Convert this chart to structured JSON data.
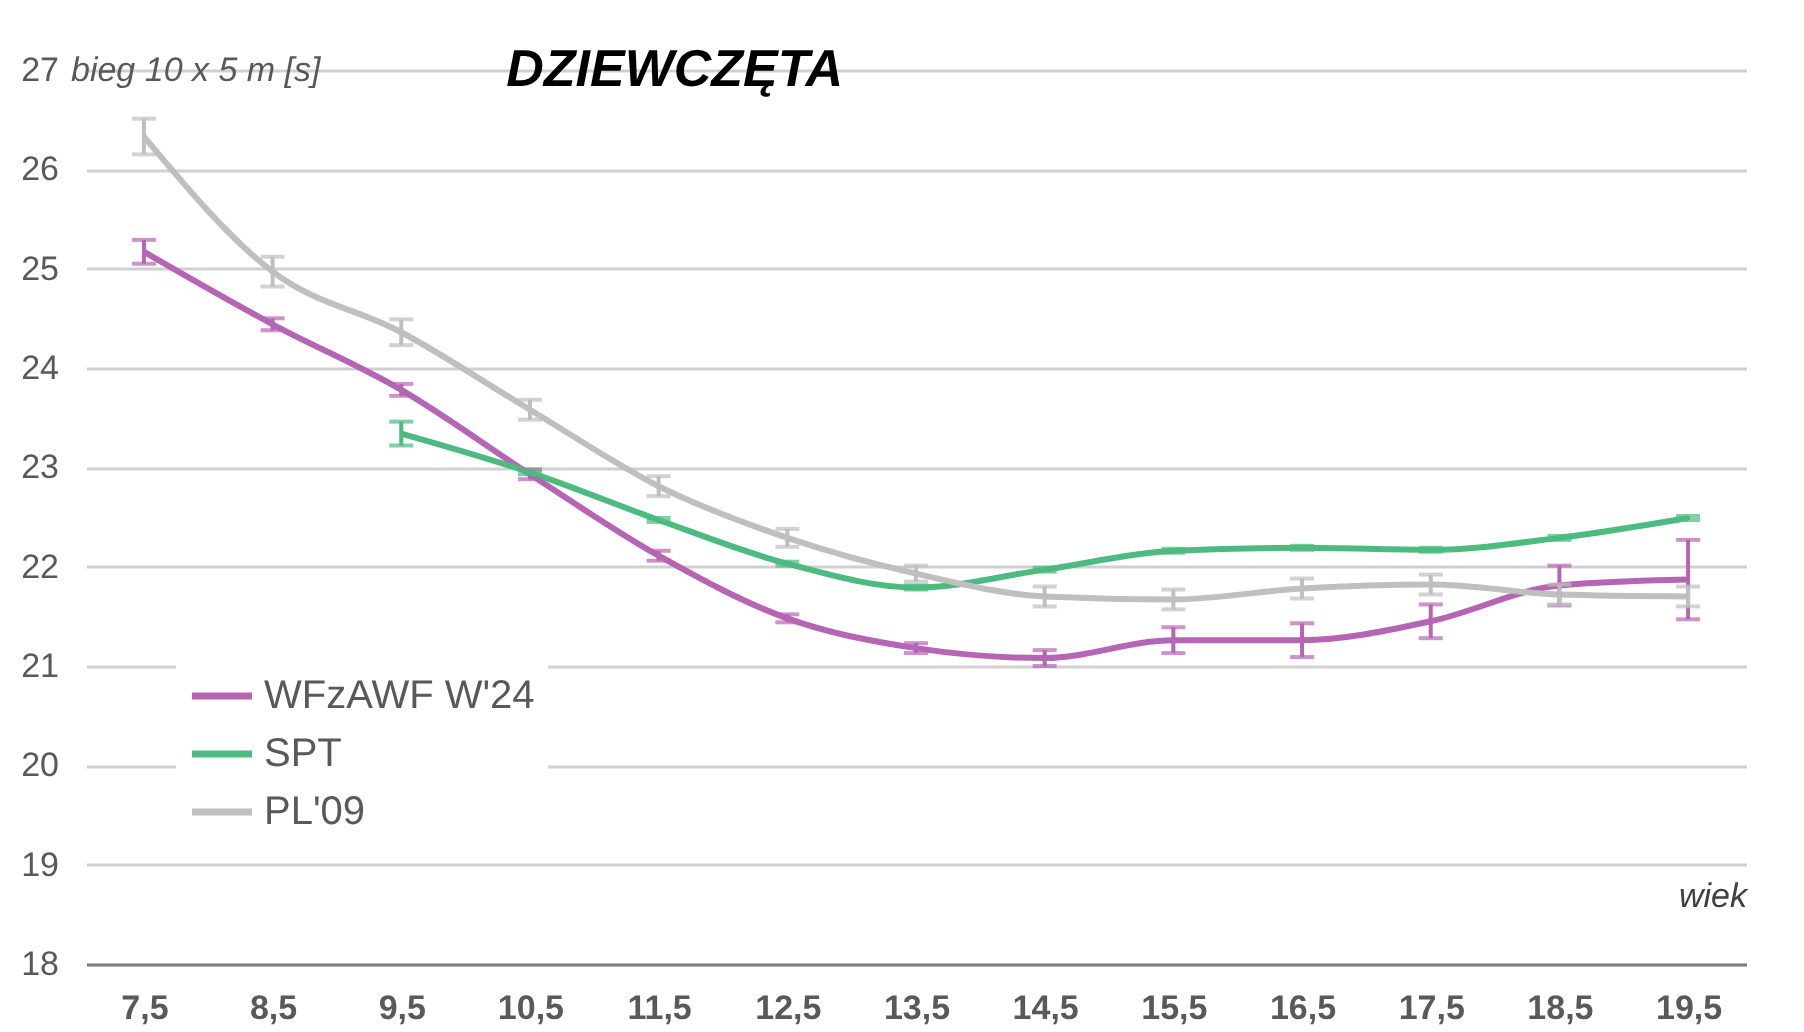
{
  "chart_data": {
    "type": "line",
    "title": "DZIEWCZĘTA",
    "ylabel": "bieg 10 x 5 m [s]",
    "xlabel": "wiek",
    "categories": [
      "7,5",
      "8,5",
      "9,5",
      "10,5",
      "11,5",
      "12,5",
      "13,5",
      "14,5",
      "15,5",
      "16,5",
      "17,5",
      "18,5",
      "19,5"
    ],
    "ylim": [
      18,
      27
    ],
    "yticks": [
      18,
      19,
      20,
      21,
      22,
      23,
      24,
      25,
      26,
      27
    ],
    "grid": "y",
    "legend": "left",
    "line_style": "solid",
    "marker": "none",
    "series": [
      {
        "name": "WFzAWF W'24",
        "color": "#b565b3",
        "values": [
          25.17,
          24.44,
          23.78,
          22.93,
          22.11,
          21.48,
          21.18,
          21.08,
          21.26,
          21.26,
          21.45,
          21.81,
          21.87
        ],
        "errors": [
          0.12,
          0.06,
          0.06,
          0.05,
          0.05,
          0.04,
          0.05,
          0.08,
          0.13,
          0.17,
          0.17,
          0.2,
          0.4
        ]
      },
      {
        "name": "SPT",
        "color": "#4dbb80",
        "values": [
          null,
          null,
          23.34,
          22.95,
          22.47,
          22.03,
          21.79,
          21.97,
          22.16,
          22.19,
          22.17,
          22.29,
          22.49
        ],
        "errors": [
          null,
          null,
          0.12,
          0.02,
          0.02,
          0.02,
          0.02,
          0.02,
          0.02,
          0.02,
          0.02,
          0.02,
          0.02
        ]
      },
      {
        "name": "PL'09",
        "color": "#bfbfbf",
        "values": [
          26.33,
          24.97,
          24.36,
          23.58,
          22.81,
          22.29,
          21.93,
          21.7,
          21.67,
          21.78,
          21.82,
          21.72,
          21.7
        ],
        "errors": [
          0.18,
          0.15,
          0.13,
          0.1,
          0.1,
          0.09,
          0.08,
          0.1,
          0.1,
          0.1,
          0.1,
          0.1,
          0.1
        ]
      }
    ]
  }
}
